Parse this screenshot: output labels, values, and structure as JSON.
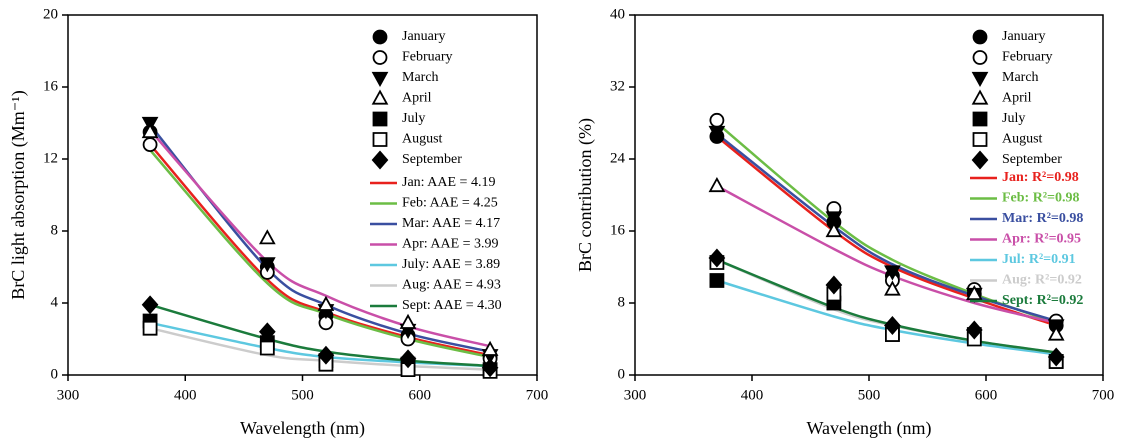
{
  "chart_data": [
    {
      "type": "scatter",
      "x_label": "Wavelength (nm)",
      "y_label": "BrC light absorption (Mm⁻¹)",
      "xlim": [
        300,
        700
      ],
      "xticks": [
        300,
        400,
        500,
        600,
        700
      ],
      "ylim": [
        0,
        20
      ],
      "yticks": [
        0,
        4,
        8,
        12,
        16,
        20
      ],
      "x": [
        370,
        470,
        520,
        590,
        660
      ],
      "legend_text_colored": false,
      "series": [
        {
          "name": "January",
          "marker": "circle",
          "filled": true,
          "color": "#000000",
          "values": [
            13.5,
            6.0,
            3.3,
            2.2,
            1.0
          ]
        },
        {
          "name": "February",
          "marker": "circle",
          "filled": false,
          "color": "#000000",
          "values": [
            12.8,
            5.7,
            2.9,
            2.0,
            0.9
          ]
        },
        {
          "name": "March",
          "marker": "triangle-down",
          "filled": true,
          "color": "#000000",
          "values": [
            14.0,
            6.2,
            3.6,
            2.5,
            1.1
          ]
        },
        {
          "name": "April",
          "marker": "triangle-up",
          "filled": false,
          "color": "#000000",
          "values": [
            13.5,
            7.6,
            3.9,
            2.9,
            1.4
          ]
        },
        {
          "name": "July",
          "marker": "square",
          "filled": true,
          "color": "#000000",
          "values": [
            3.0,
            1.8,
            0.8,
            0.6,
            0.3
          ]
        },
        {
          "name": "August",
          "marker": "square",
          "filled": false,
          "color": "#000000",
          "values": [
            2.6,
            1.5,
            0.6,
            0.3,
            0.2
          ]
        },
        {
          "name": "September",
          "marker": "diamond",
          "filled": true,
          "color": "#000000",
          "values": [
            3.9,
            2.4,
            1.1,
            0.9,
            0.4
          ]
        }
      ],
      "fits": [
        {
          "name": "Jan: AAE = 4.19",
          "color": "#e8211d",
          "values": [
            12.8,
            5.3,
            3.5,
            2.1,
            1.1
          ]
        },
        {
          "name": "Feb: AAE = 4.25",
          "color": "#6cbd45",
          "values": [
            12.5,
            5.1,
            3.4,
            2.0,
            1.0
          ]
        },
        {
          "name": "Mar: AAE = 4.17",
          "color": "#3a4fa0",
          "values": [
            13.9,
            5.9,
            3.9,
            2.3,
            1.3
          ]
        },
        {
          "name": "Apr: AAE = 3.99",
          "color": "#c94fa8",
          "values": [
            13.6,
            6.3,
            4.4,
            2.7,
            1.6
          ]
        },
        {
          "name": "July: AAE = 3.89",
          "color": "#5dc8e0",
          "values": [
            2.9,
            1.5,
            1.0,
            0.7,
            0.5
          ]
        },
        {
          "name": "Aug: AAE = 4.93",
          "color": "#cccccc",
          "values": [
            2.6,
            1.1,
            0.8,
            0.5,
            0.3
          ]
        },
        {
          "name": "Sept: AAE = 4.30",
          "color": "#1b7b3c",
          "values": [
            3.9,
            2.0,
            1.3,
            0.8,
            0.5
          ]
        }
      ]
    },
    {
      "type": "scatter",
      "x_label": "Wavelength (nm)",
      "y_label": "BrC contribution (%)",
      "xlim": [
        300,
        700
      ],
      "xticks": [
        300,
        400,
        500,
        600,
        700
      ],
      "ylim": [
        0,
        40
      ],
      "yticks": [
        0,
        8,
        16,
        24,
        32,
        40
      ],
      "x": [
        370,
        470,
        520,
        590,
        660
      ],
      "legend_text_colored": true,
      "series": [
        {
          "name": "January",
          "marker": "circle",
          "filled": true,
          "color": "#000000",
          "values": [
            26.5,
            17,
            11,
            9,
            5.5
          ]
        },
        {
          "name": "February",
          "marker": "circle",
          "filled": false,
          "color": "#000000",
          "values": [
            28.3,
            18.5,
            10.5,
            9.5,
            6
          ]
        },
        {
          "name": "March",
          "marker": "triangle-down",
          "filled": true,
          "color": "#000000",
          "values": [
            27,
            17.5,
            11.5,
            9,
            5.5
          ]
        },
        {
          "name": "April",
          "marker": "triangle-up",
          "filled": false,
          "color": "#000000",
          "values": [
            21,
            16,
            9.5,
            9,
            4.5
          ]
        },
        {
          "name": "July",
          "marker": "square",
          "filled": true,
          "color": "#000000",
          "values": [
            10.5,
            8,
            4.5,
            4.5,
            1.5
          ]
        },
        {
          "name": "August",
          "marker": "square",
          "filled": false,
          "color": "#000000",
          "values": [
            12.5,
            9,
            4.5,
            4,
            1.5
          ]
        },
        {
          "name": "September",
          "marker": "diamond",
          "filled": true,
          "color": "#000000",
          "values": [
            13,
            10,
            5.5,
            5,
            2
          ]
        }
      ],
      "fits": [
        {
          "name": "Jan: R²=0.98",
          "color": "#e8211d",
          "values": [
            26.5,
            16,
            12,
            8.5,
            5.5
          ]
        },
        {
          "name": "Feb: R²=0.98",
          "color": "#6cbd45",
          "values": [
            28,
            17,
            12.8,
            9,
            5.8
          ]
        },
        {
          "name": "Mar: R²=0.98",
          "color": "#3a4fa0",
          "values": [
            26.8,
            16.5,
            12.3,
            8.8,
            6
          ]
        },
        {
          "name": "Apr: R²=0.95",
          "color": "#c94fa8",
          "values": [
            21,
            14,
            11,
            8,
            5.8
          ]
        },
        {
          "name": "Jul: R²=0.91",
          "color": "#5dc8e0",
          "values": [
            10.5,
            6.5,
            5,
            3.5,
            2.3
          ]
        },
        {
          "name": "Aug: R²=0.92",
          "color": "#cccccc",
          "values": [
            12.8,
            7.3,
            5.5,
            3.8,
            2.5
          ]
        },
        {
          "name": "Sept: R²=0.92",
          "color": "#1b7b3c",
          "values": [
            12.8,
            7.5,
            5.6,
            3.8,
            2.5
          ]
        }
      ]
    }
  ]
}
